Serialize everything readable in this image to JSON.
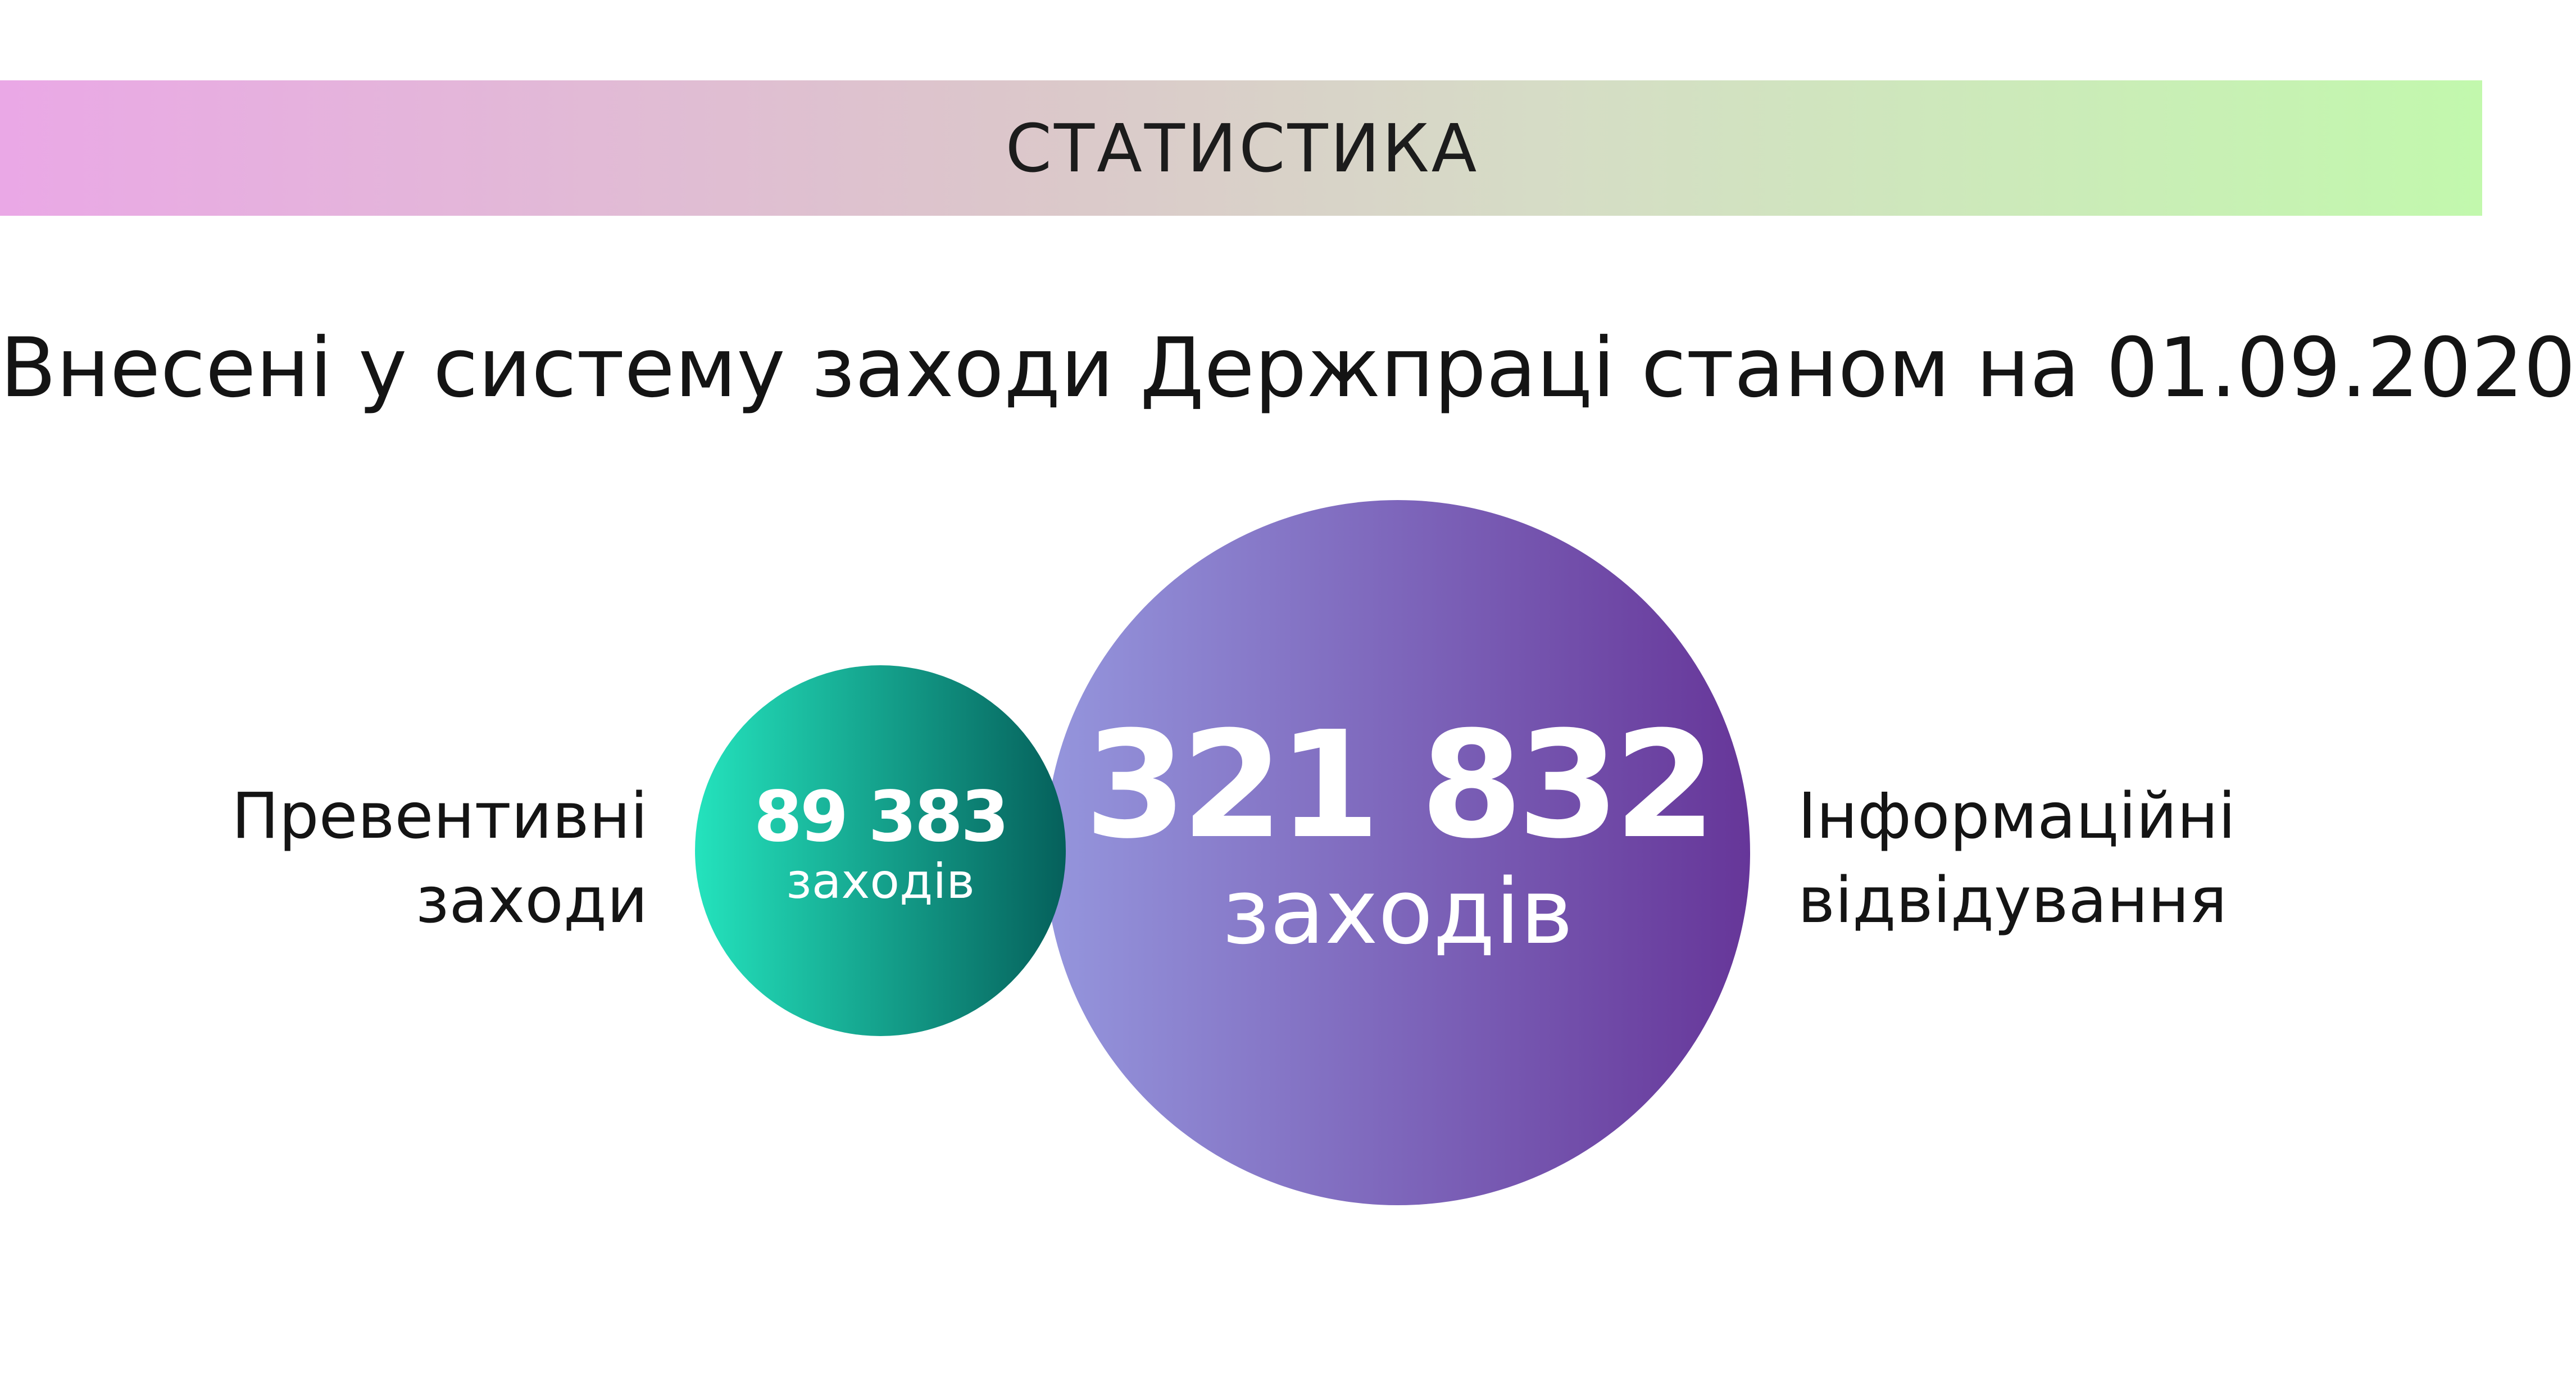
{
  "banner": {
    "title": "СТАТИСТИКА"
  },
  "chart_data": {
    "type": "bubble",
    "title": "Внесені у систему заходи Держпраці станом на 01.09.2020",
    "series": [
      {
        "name_lines": [
          "Превентивні",
          "заходи"
        ],
        "value": 89383,
        "value_text": "89 383",
        "unit": "заходів",
        "color_start": "#24e3bd",
        "color_end": "#05605b"
      },
      {
        "name_lines": [
          "Інформаційні",
          "відвідування"
        ],
        "value": 321832,
        "value_text": "321 832",
        "unit": "заходів",
        "color_start": "#9596dd",
        "color_end": "#663699"
      }
    ]
  }
}
